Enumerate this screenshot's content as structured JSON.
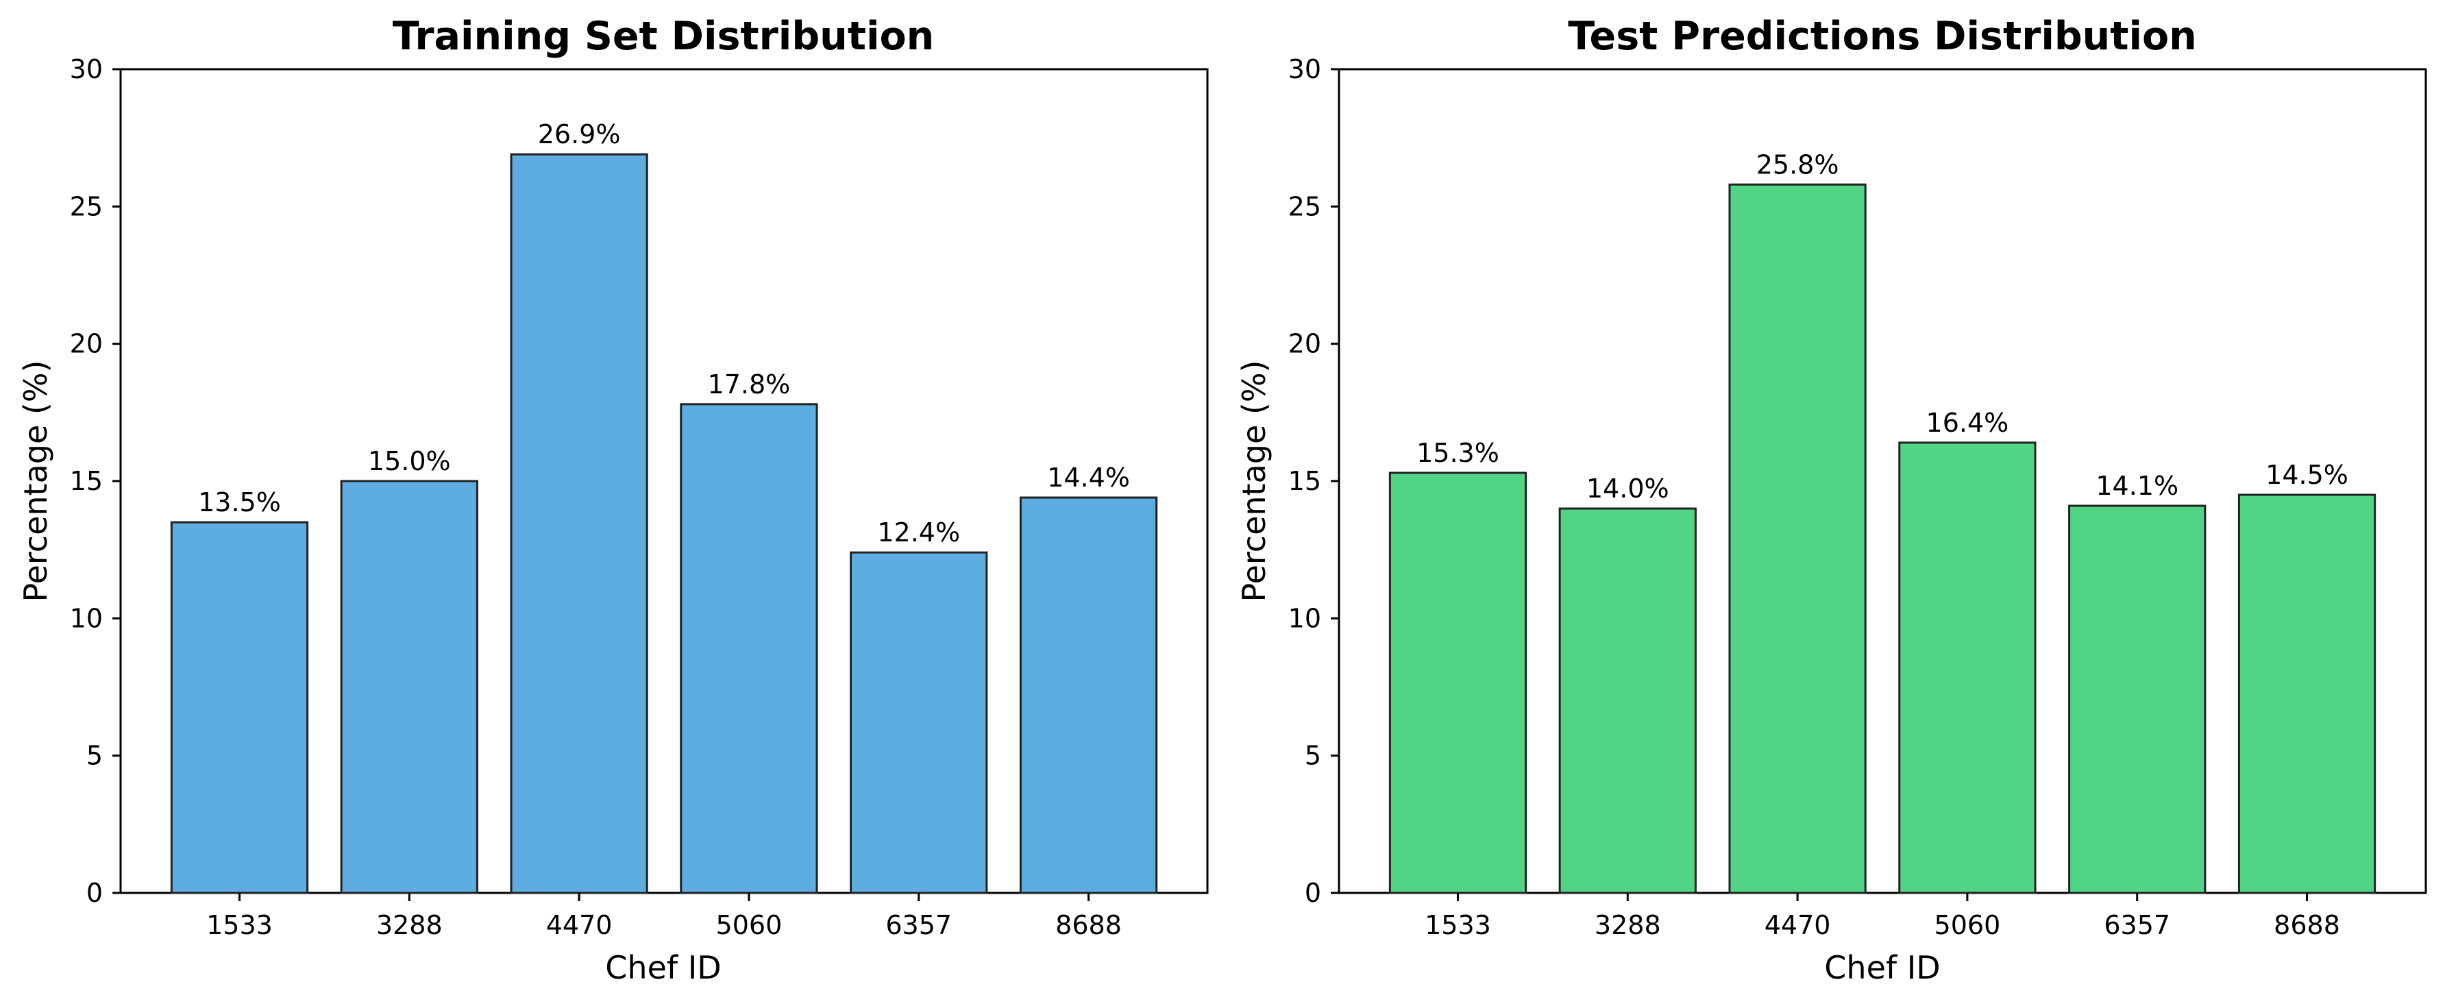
{
  "chart_data": [
    {
      "type": "bar",
      "title": "Training Set Distribution",
      "xlabel": "Chef ID",
      "ylabel": "Percentage (%)",
      "categories": [
        "1533",
        "3288",
        "4470",
        "5060",
        "6357",
        "8688"
      ],
      "values": [
        13.5,
        15.0,
        26.9,
        17.8,
        12.4,
        14.4
      ],
      "data_labels": [
        "13.5%",
        "15.0%",
        "26.9%",
        "17.8%",
        "12.4%",
        "14.4%"
      ],
      "ylim": [
        0,
        30
      ],
      "yticks": [
        0,
        5,
        10,
        15,
        20,
        25,
        30
      ],
      "ytick_labels": [
        "0",
        "5",
        "10",
        "15",
        "20",
        "25",
        "30"
      ],
      "bar_color": "#5dade2",
      "edge_color": "#222222",
      "grid": false,
      "legend": "none"
    },
    {
      "type": "bar",
      "title": "Test Predictions Distribution",
      "xlabel": "Chef ID",
      "ylabel": "Percentage (%)",
      "categories": [
        "1533",
        "3288",
        "4470",
        "5060",
        "6357",
        "8688"
      ],
      "values": [
        15.3,
        14.0,
        25.8,
        16.4,
        14.1,
        14.5
      ],
      "data_labels": [
        "15.3%",
        "14.0%",
        "25.8%",
        "16.4%",
        "14.1%",
        "14.5%"
      ],
      "ylim": [
        0,
        30
      ],
      "yticks": [
        0,
        5,
        10,
        15,
        20,
        25,
        30
      ],
      "ytick_labels": [
        "0",
        "5",
        "10",
        "15",
        "20",
        "25",
        "30"
      ],
      "bar_color": "#52d486",
      "edge_color": "#222222",
      "grid": false,
      "legend": "none"
    }
  ]
}
